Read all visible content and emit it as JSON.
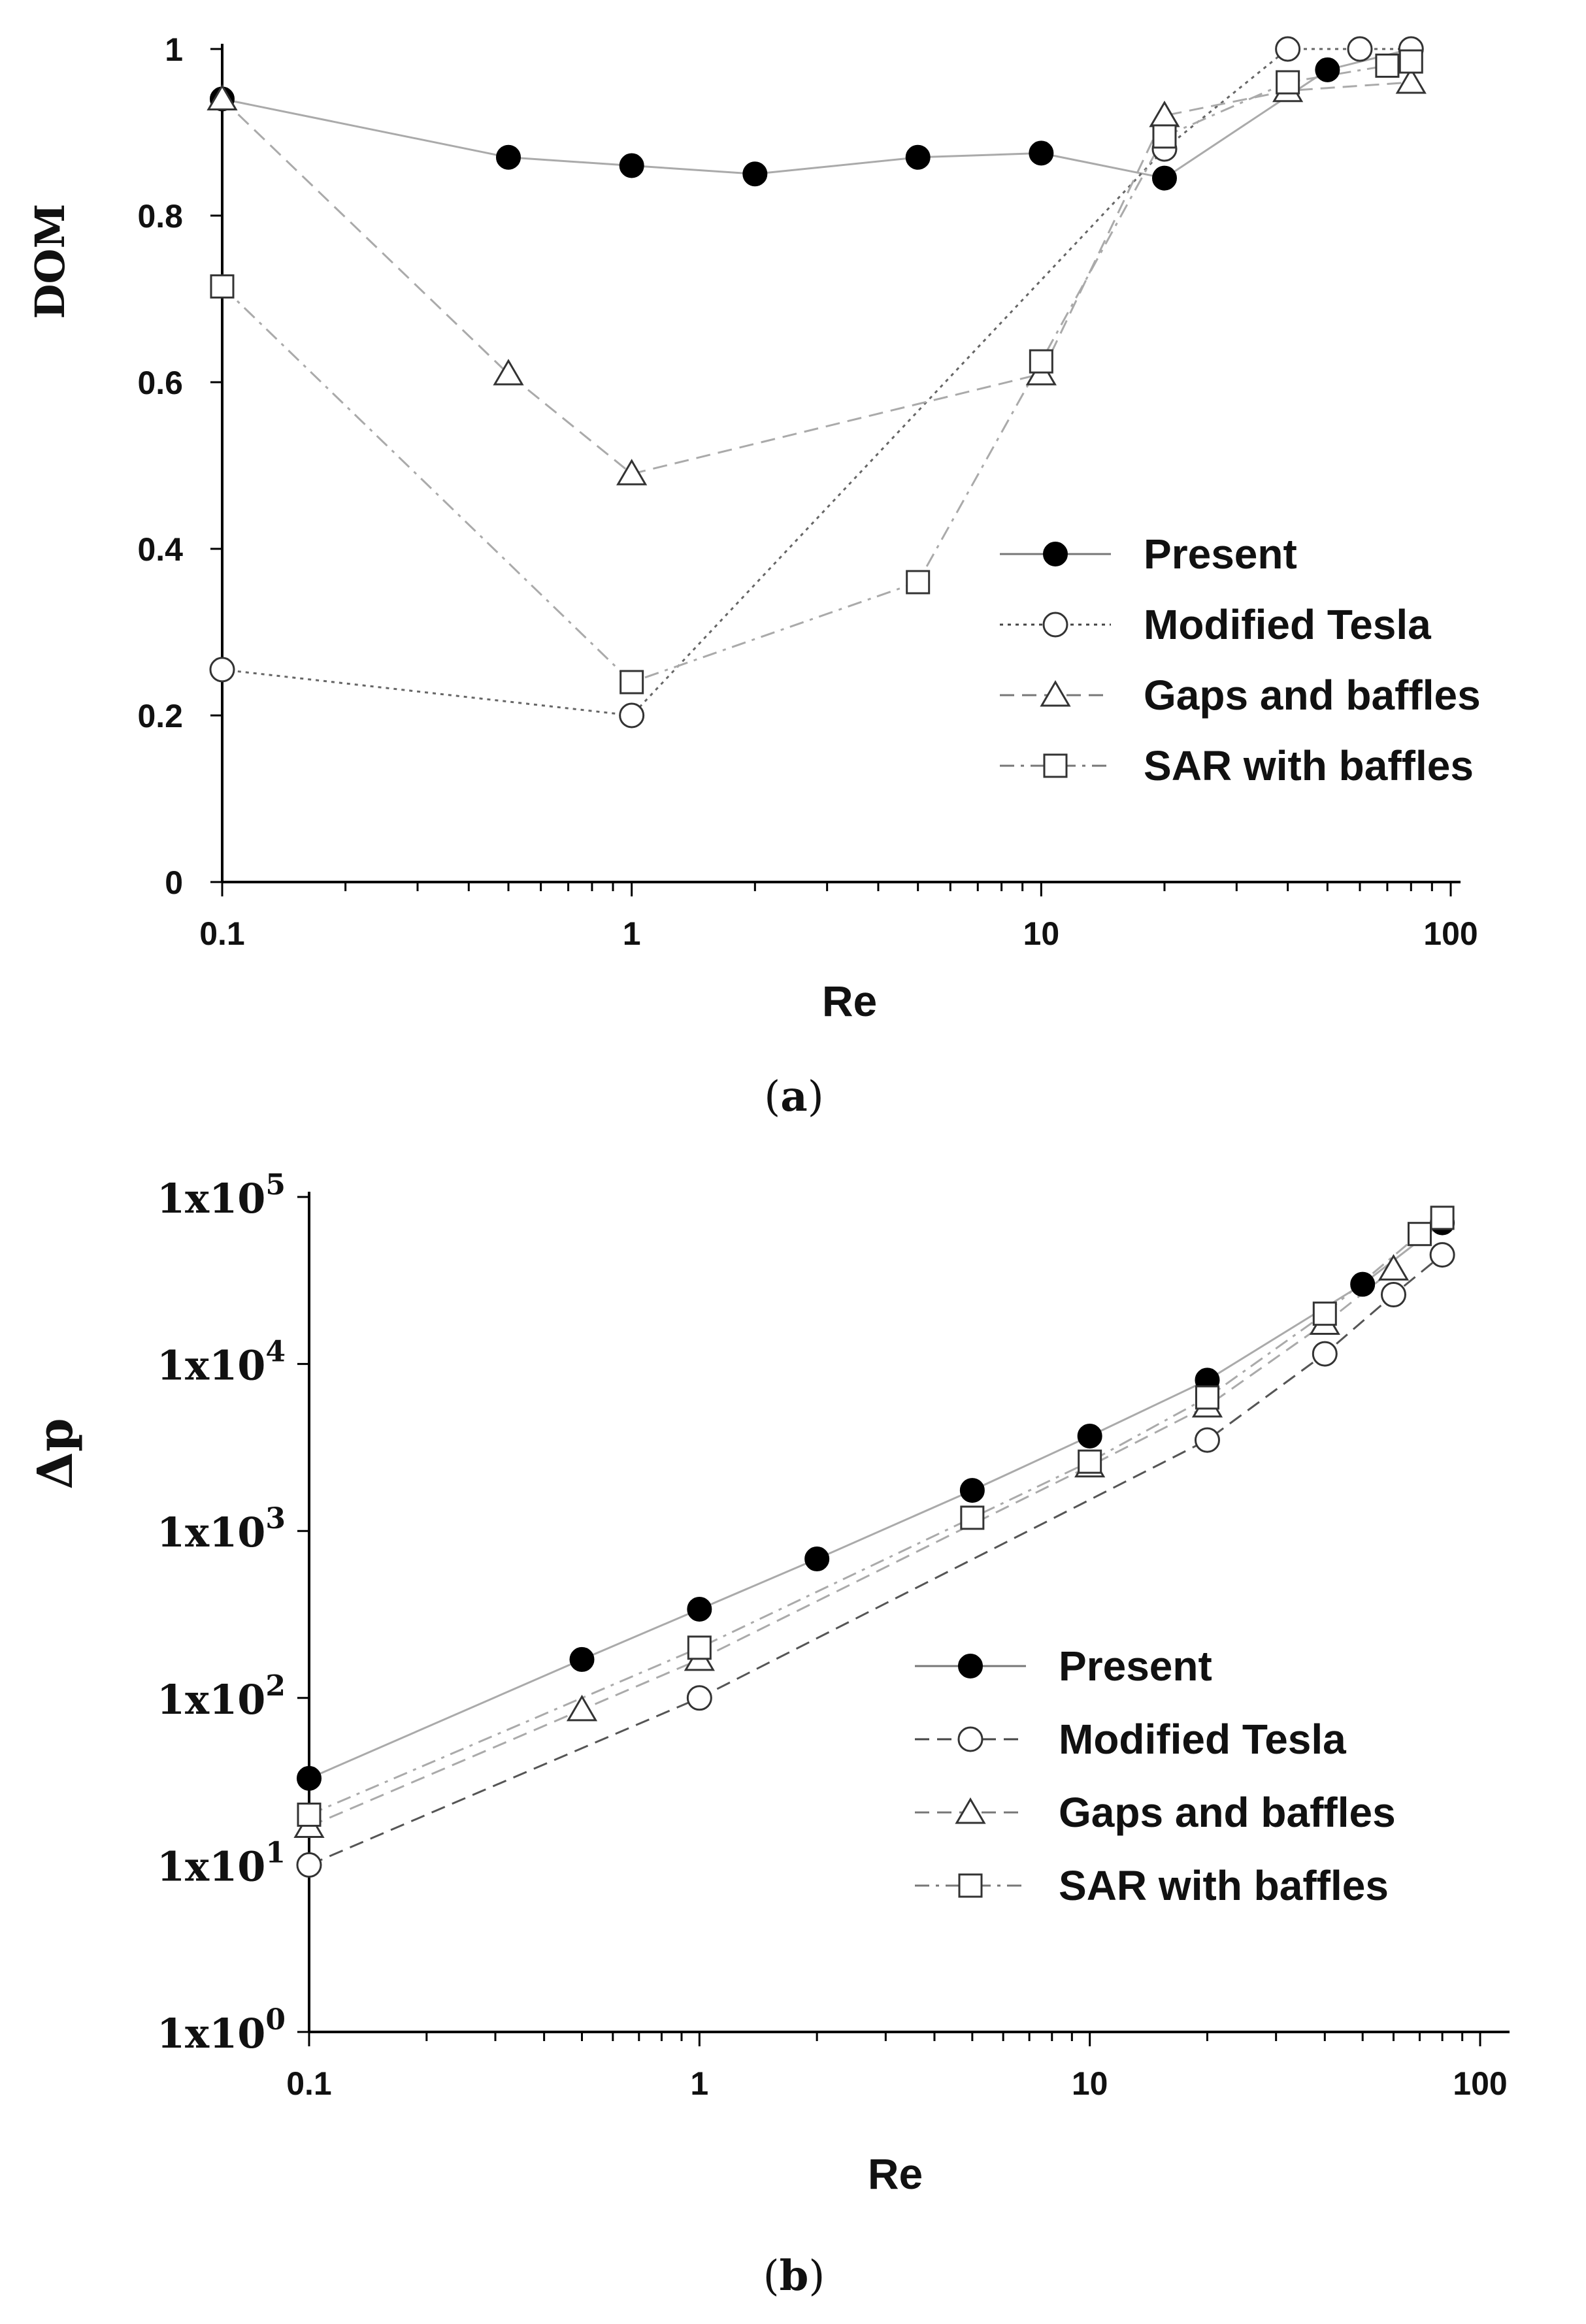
{
  "chart_data": [
    {
      "type": "line",
      "panel": "a",
      "caption_letter": "a",
      "xlabel": "Re",
      "ylabel": "DOM",
      "xscale": "log",
      "xlim": [
        0.1,
        100
      ],
      "ylim": [
        0,
        1
      ],
      "xticks": [
        0.1,
        1,
        10,
        100
      ],
      "xtick_labels": [
        "0.1",
        "1",
        "10",
        "100"
      ],
      "yticks": [
        0,
        0.2,
        0.4,
        0.6,
        0.8,
        1
      ],
      "ytick_labels": [
        "0",
        "0.2",
        "0.4",
        "0.6",
        "0.8",
        "1"
      ],
      "grid": false,
      "legend_position": "right-center",
      "series": [
        {
          "name": "Present",
          "marker": "filled-circle",
          "line": "solid",
          "color": "#aaaaaa",
          "x": [
            0.1,
            0.5,
            1,
            2,
            5,
            10,
            20,
            50,
            80
          ],
          "y": [
            0.94,
            0.87,
            0.86,
            0.85,
            0.87,
            0.875,
            0.845,
            0.975,
            1.0
          ]
        },
        {
          "name": "Modified Tesla",
          "marker": "open-circle",
          "line": "dotted",
          "color": "#666666",
          "x": [
            0.1,
            1,
            20,
            40,
            60,
            80
          ],
          "y": [
            0.255,
            0.2,
            0.88,
            1.0,
            1.0,
            1.0
          ]
        },
        {
          "name": "Gaps and baffles",
          "marker": "open-triangle",
          "line": "dashed",
          "color": "#aaaaaa",
          "x": [
            0.1,
            0.5,
            1,
            10,
            20,
            40,
            80
          ],
          "y": [
            0.94,
            0.61,
            0.49,
            0.61,
            0.92,
            0.95,
            0.96
          ]
        },
        {
          "name": "SAR with baffles",
          "marker": "open-square",
          "line": "dashdot",
          "color": "#aaaaaa",
          "x": [
            0.1,
            1,
            5,
            10,
            20,
            40,
            70,
            80
          ],
          "y": [
            0.715,
            0.24,
            0.36,
            0.625,
            0.895,
            0.96,
            0.98,
            0.985
          ]
        }
      ]
    },
    {
      "type": "line",
      "panel": "b",
      "caption_letter": "b",
      "xlabel": "Re",
      "ylabel": "Δp",
      "xscale": "log",
      "yscale": "log",
      "xlim": [
        0.1,
        100
      ],
      "ylim": [
        1,
        100000
      ],
      "xticks": [
        0.1,
        1,
        10,
        100
      ],
      "xtick_labels": [
        "0.1",
        "1",
        "10",
        "100"
      ],
      "yticks": [
        1,
        10,
        100,
        1000,
        10000,
        100000
      ],
      "ytick_base": "1x10",
      "ytick_exponents": [
        "0",
        "1",
        "2",
        "3",
        "4",
        "5"
      ],
      "grid": false,
      "legend_position": "right-center",
      "series": [
        {
          "name": "Present",
          "marker": "filled-circle",
          "line": "solid",
          "color": "#aaaaaa",
          "x": [
            0.1,
            0.5,
            1,
            2,
            5,
            10,
            20,
            50,
            80
          ],
          "y": [
            33,
            170,
            340,
            680,
            1750,
            3700,
            8000,
            30000,
            70000
          ]
        },
        {
          "name": "Modified Tesla",
          "marker": "open-circle",
          "line": "dashed",
          "color": "#555555",
          "x": [
            0.1,
            1,
            20,
            40,
            60,
            80
          ],
          "y": [
            10,
            100,
            3500,
            11500,
            26000,
            45000
          ]
        },
        {
          "name": "Gaps and baffles",
          "marker": "open-triangle",
          "line": "dashed",
          "color": "#aaaaaa",
          "x": [
            0.1,
            0.5,
            1,
            10,
            20,
            40,
            60
          ],
          "y": [
            17,
            85,
            170,
            2450,
            5600,
            17500,
            37000
          ]
        },
        {
          "name": "SAR with baffles",
          "marker": "open-square",
          "line": "dashdot",
          "color": "#aaaaaa",
          "x": [
            0.1,
            1,
            5,
            10,
            20,
            40,
            70,
            80
          ],
          "y": [
            20,
            200,
            1200,
            2600,
            6300,
            20000,
            60000,
            75000
          ]
        }
      ]
    }
  ]
}
